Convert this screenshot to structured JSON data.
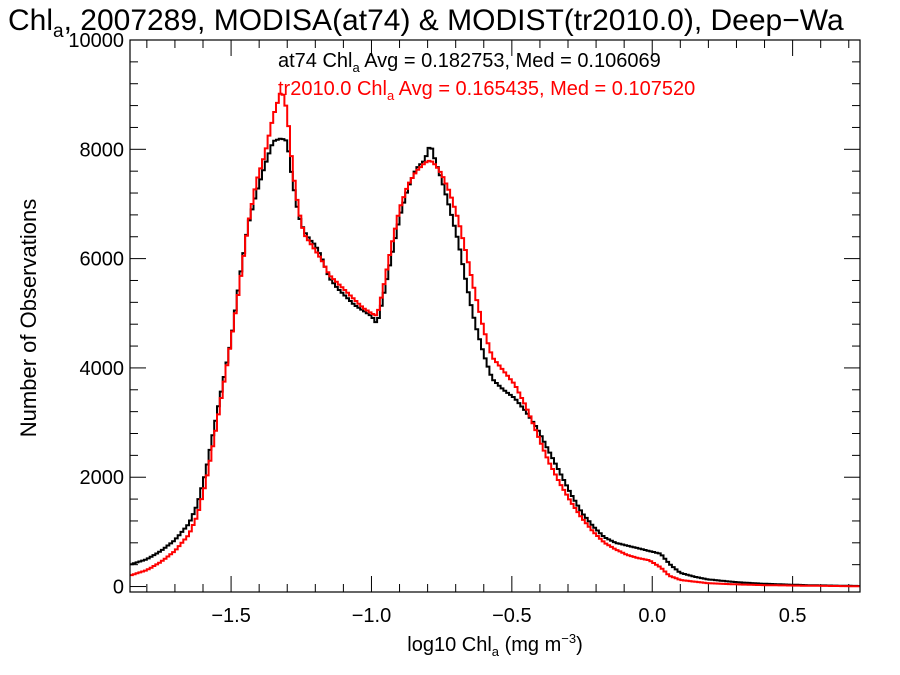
{
  "chart_data": {
    "type": "line",
    "title": {
      "prefix": "Chl",
      "sub": "a",
      "rest": ", 2007289, MODISA(at74) & MODIST(tr2010.0), Deep−Wa"
    },
    "xlabel": {
      "prefix": "log10 Chl",
      "sub": "a",
      "mid": " (mg m",
      "sup": "−3",
      "end": ")"
    },
    "ylabel": "Number of Observations",
    "xlim": [
      -1.86,
      0.74
    ],
    "ylim": [
      -100,
      10000
    ],
    "x_ticks": [
      {
        "value": -1.5,
        "label": "−1.5"
      },
      {
        "value": -1.0,
        "label": "−1.0"
      },
      {
        "value": -0.5,
        "label": "−0.5"
      },
      {
        "value": 0.0,
        "label": "0.0"
      },
      {
        "value": 0.5,
        "label": "0.5"
      }
    ],
    "x_minor_step": 0.1,
    "y_ticks": [
      {
        "value": 0,
        "label": "0"
      },
      {
        "value": 2000,
        "label": "2000"
      },
      {
        "value": 4000,
        "label": "4000"
      },
      {
        "value": 6000,
        "label": "6000"
      },
      {
        "value": 8000,
        "label": "8000"
      },
      {
        "value": 10000,
        "label": "10000"
      }
    ],
    "y_minor_step": 400,
    "grid": false,
    "step_style": "histogram",
    "series": [
      {
        "legend": {
          "prefix": "at74 Chl",
          "sub": "a",
          "rest": " Avg = 0.182753, Med = 0.106069"
        },
        "color": "#000000",
        "points": [
          [
            -1.86,
            400
          ],
          [
            -1.8,
            500
          ],
          [
            -1.75,
            650
          ],
          [
            -1.7,
            850
          ],
          [
            -1.65,
            1150
          ],
          [
            -1.62,
            1500
          ],
          [
            -1.59,
            2100
          ],
          [
            -1.56,
            2900
          ],
          [
            -1.53,
            3700
          ],
          [
            -1.5,
            4500
          ],
          [
            -1.47,
            5600
          ],
          [
            -1.44,
            6600
          ],
          [
            -1.41,
            7200
          ],
          [
            -1.38,
            7700
          ],
          [
            -1.35,
            8150
          ],
          [
            -1.32,
            8200
          ],
          [
            -1.3,
            8150
          ],
          [
            -1.28,
            7400
          ],
          [
            -1.26,
            6800
          ],
          [
            -1.24,
            6500
          ],
          [
            -1.22,
            6350
          ],
          [
            -1.2,
            6250
          ],
          [
            -1.18,
            6050
          ],
          [
            -1.15,
            5650
          ],
          [
            -1.12,
            5450
          ],
          [
            -1.09,
            5300
          ],
          [
            -1.06,
            5150
          ],
          [
            -1.03,
            5050
          ],
          [
            -1.0,
            4950
          ],
          [
            -0.98,
            4800
          ],
          [
            -0.96,
            5250
          ],
          [
            -0.93,
            6000
          ],
          [
            -0.9,
            6750
          ],
          [
            -0.87,
            7300
          ],
          [
            -0.84,
            7650
          ],
          [
            -0.81,
            7800
          ],
          [
            -0.79,
            8100
          ],
          [
            -0.77,
            7750
          ],
          [
            -0.75,
            7450
          ],
          [
            -0.72,
            6900
          ],
          [
            -0.69,
            6300
          ],
          [
            -0.66,
            5500
          ],
          [
            -0.63,
            4800
          ],
          [
            -0.6,
            4250
          ],
          [
            -0.57,
            3800
          ],
          [
            -0.53,
            3600
          ],
          [
            -0.49,
            3450
          ],
          [
            -0.45,
            3200
          ],
          [
            -0.41,
            2900
          ],
          [
            -0.37,
            2500
          ],
          [
            -0.33,
            2100
          ],
          [
            -0.29,
            1700
          ],
          [
            -0.25,
            1350
          ],
          [
            -0.21,
            1100
          ],
          [
            -0.17,
            900
          ],
          [
            -0.13,
            800
          ],
          [
            -0.09,
            750
          ],
          [
            -0.05,
            700
          ],
          [
            -0.01,
            650
          ],
          [
            0.03,
            600
          ],
          [
            0.06,
            420
          ],
          [
            0.1,
            250
          ],
          [
            0.15,
            180
          ],
          [
            0.2,
            130
          ],
          [
            0.3,
            80
          ],
          [
            0.4,
            50
          ],
          [
            0.55,
            25
          ],
          [
            0.74,
            10
          ]
        ]
      },
      {
        "legend": {
          "prefix": "tr2010.0 Chl",
          "sub": "a",
          "rest": " Avg = 0.165435, Med = 0.107520"
        },
        "color": "#ff0000",
        "points": [
          [
            -1.86,
            200
          ],
          [
            -1.8,
            300
          ],
          [
            -1.75,
            450
          ],
          [
            -1.7,
            650
          ],
          [
            -1.65,
            950
          ],
          [
            -1.62,
            1300
          ],
          [
            -1.59,
            1900
          ],
          [
            -1.56,
            2700
          ],
          [
            -1.53,
            3600
          ],
          [
            -1.5,
            4500
          ],
          [
            -1.47,
            5500
          ],
          [
            -1.44,
            6600
          ],
          [
            -1.41,
            7400
          ],
          [
            -1.38,
            7900
          ],
          [
            -1.35,
            8600
          ],
          [
            -1.32,
            9100
          ],
          [
            -1.3,
            8700
          ],
          [
            -1.28,
            7600
          ],
          [
            -1.26,
            6900
          ],
          [
            -1.24,
            6450
          ],
          [
            -1.22,
            6300
          ],
          [
            -1.2,
            6150
          ],
          [
            -1.18,
            6000
          ],
          [
            -1.15,
            5700
          ],
          [
            -1.12,
            5550
          ],
          [
            -1.09,
            5400
          ],
          [
            -1.06,
            5250
          ],
          [
            -1.03,
            5100
          ],
          [
            -1.0,
            5000
          ],
          [
            -0.98,
            4950
          ],
          [
            -0.96,
            5400
          ],
          [
            -0.93,
            6200
          ],
          [
            -0.9,
            6900
          ],
          [
            -0.87,
            7350
          ],
          [
            -0.84,
            7600
          ],
          [
            -0.81,
            7750
          ],
          [
            -0.79,
            7800
          ],
          [
            -0.77,
            7700
          ],
          [
            -0.75,
            7550
          ],
          [
            -0.72,
            7200
          ],
          [
            -0.69,
            6700
          ],
          [
            -0.66,
            6050
          ],
          [
            -0.63,
            5350
          ],
          [
            -0.6,
            4700
          ],
          [
            -0.57,
            4200
          ],
          [
            -0.53,
            3950
          ],
          [
            -0.49,
            3700
          ],
          [
            -0.45,
            3300
          ],
          [
            -0.41,
            2800
          ],
          [
            -0.37,
            2300
          ],
          [
            -0.33,
            1900
          ],
          [
            -0.29,
            1550
          ],
          [
            -0.25,
            1250
          ],
          [
            -0.21,
            1000
          ],
          [
            -0.17,
            800
          ],
          [
            -0.13,
            680
          ],
          [
            -0.09,
            580
          ],
          [
            -0.05,
            520
          ],
          [
            -0.01,
            480
          ],
          [
            0.03,
            350
          ],
          [
            0.06,
            200
          ],
          [
            0.1,
            120
          ],
          [
            0.15,
            90
          ],
          [
            0.2,
            60
          ],
          [
            0.3,
            40
          ],
          [
            0.4,
            25
          ],
          [
            0.55,
            15
          ],
          [
            0.74,
            5
          ]
        ]
      }
    ]
  }
}
